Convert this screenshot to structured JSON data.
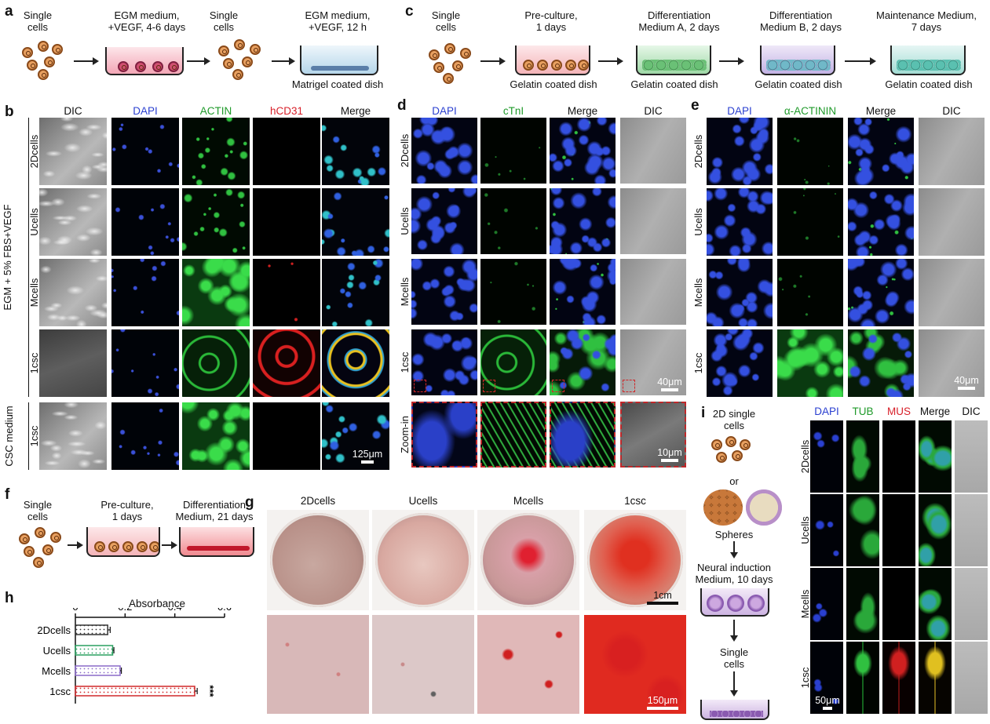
{
  "panels": {
    "a": "a",
    "b": "b",
    "c": "c",
    "d": "d",
    "e": "e",
    "f": "f",
    "g": "g",
    "h": "h",
    "i": "i"
  },
  "a": {
    "steps": [
      "Single\ncells",
      "EGM medium,\n+VEGF, 4-6 days",
      "Single\ncells",
      "EGM medium,\n+VEGF, 12 h"
    ],
    "dish_label": "Matrigel coated dish"
  },
  "c": {
    "steps": [
      "Single\ncells",
      "Pre-culture,\n1 days",
      "Differentiation\nMedium A, 2 days",
      "Differentiation\nMedium B, 2 days",
      "Maintenance Medium,\n7 days"
    ],
    "dish_label": "Gelatin coated dish"
  },
  "b": {
    "channels": [
      "DIC",
      "DAPI",
      "ACTIN",
      "hCD31",
      "Merge"
    ],
    "channel_colors": [
      "#111111",
      "#2a3fd0",
      "#1f9a2a",
      "#d8202a",
      "#111111"
    ],
    "rows": [
      "2Dcells",
      "Ucells",
      "Mcells",
      "1csc",
      "1csc"
    ],
    "group1": "EGM + 5% FBS+VEGF",
    "group2": "CSC medium",
    "scale": "125μm"
  },
  "d": {
    "channels": [
      "DAPI",
      "cTnI",
      "Merge",
      "DIC"
    ],
    "channel_colors": [
      "#2a3fd0",
      "#1f9a2a",
      "#111111",
      "#111111"
    ],
    "rows": [
      "2Dcells",
      "Ucells",
      "Mcells",
      "1csc",
      "Zoom-in"
    ],
    "scale": "40μm",
    "zoom_scale": "10μm"
  },
  "e": {
    "channels": [
      "DAPI",
      "α-ACTININ",
      "Merge",
      "DIC"
    ],
    "channel_colors": [
      "#2a3fd0",
      "#1f9a2a",
      "#111111",
      "#111111"
    ],
    "rows": [
      "2Dcells",
      "Ucells",
      "Mcells",
      "1csc"
    ],
    "scale": "40μm"
  },
  "f": {
    "steps": [
      "Single\ncells",
      "Pre-culture,\n1 days",
      "Differentiation\nMedium, 21 days"
    ]
  },
  "g": {
    "columns": [
      "2Dcells",
      "Ucells",
      "Mcells",
      "1csc"
    ],
    "scale_top": "1cm",
    "scale_bottom": "150μm"
  },
  "i": {
    "steps": [
      "2D single\ncells",
      "or",
      "Spheres",
      "Neural induction\nMedium, 10 days",
      "Single\ncells"
    ],
    "channels": [
      "DAPI",
      "TUB",
      "MUS",
      "Merge",
      "DIC"
    ],
    "channel_colors": [
      "#2a3fd0",
      "#1f9a2a",
      "#d8202a",
      "#111111",
      "#111111"
    ],
    "rows": [
      "2Dcells",
      "Ucells",
      "Mcells",
      "1csc"
    ],
    "scale": "50μm"
  },
  "chart_data": {
    "type": "bar",
    "orientation": "horizontal",
    "title": "Absorbance",
    "categories": [
      "2Dcells",
      "Ucells",
      "Mcells",
      "1csc"
    ],
    "values": [
      0.13,
      0.15,
      0.18,
      0.48
    ],
    "errors": [
      0.01,
      0.005,
      0.005,
      0.01
    ],
    "bar_colors": [
      "#333333",
      "#2aa060",
      "#8a6ac8",
      "#d0282a"
    ],
    "xlim": [
      0,
      0.6
    ],
    "xticks": [
      "0",
      "0.2",
      "0.4",
      "0.6"
    ],
    "significance": "***"
  }
}
